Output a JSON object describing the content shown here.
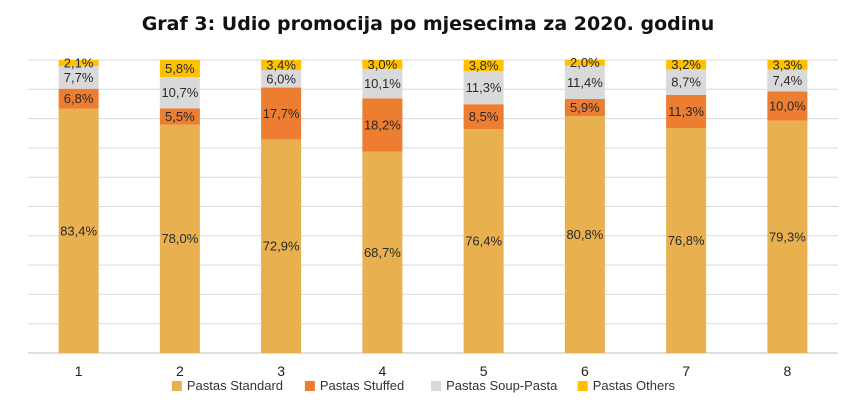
{
  "chart_data": {
    "type": "bar",
    "stacked": true,
    "title": "Graf 3: Udio promocija po mjesecima za 2020. godinu",
    "xlabel": "",
    "ylabel": "",
    "categories": [
      "1",
      "2",
      "3",
      "4",
      "5",
      "6",
      "7",
      "8"
    ],
    "ylim": [
      0,
      100
    ],
    "grid": true,
    "legend_position": "bottom",
    "series": [
      {
        "name": "Pastas Standard",
        "color": "#E8B04F",
        "values": [
          83.4,
          78.0,
          72.9,
          68.7,
          76.4,
          80.8,
          76.8,
          79.3
        ],
        "labels": [
          "83,4%",
          "78,0%",
          "72,9%",
          "68,7%",
          "76,4%",
          "80,8%",
          "76,8%",
          "79,3%"
        ]
      },
      {
        "name": "Pastas Stuffed",
        "color": "#ED7D31",
        "values": [
          6.8,
          5.5,
          17.7,
          18.2,
          8.5,
          5.9,
          11.3,
          10.0
        ],
        "labels": [
          "6,8%",
          "5,5%",
          "17,7%",
          "18,2%",
          "8,5%",
          "5,9%",
          "11,3%",
          "10,0%"
        ]
      },
      {
        "name": "Pastas Soup-Pasta",
        "color": "#D9D9D9",
        "values": [
          7.7,
          10.7,
          6.0,
          10.1,
          11.3,
          11.4,
          8.7,
          7.4
        ],
        "labels": [
          "7,7%",
          "10,7%",
          "6,0%",
          "10,1%",
          "11,3%",
          "11,4%",
          "8,7%",
          "7,4%"
        ]
      },
      {
        "name": "Pastas Others",
        "color": "#FFC000",
        "values": [
          2.1,
          5.8,
          3.4,
          3.0,
          3.8,
          2.0,
          3.2,
          3.3
        ],
        "labels": [
          "2,1%",
          "5,8%",
          "3,4%",
          "3,0%",
          "3,8%",
          "2,0%",
          "3,2%",
          "3,3%"
        ]
      }
    ]
  }
}
